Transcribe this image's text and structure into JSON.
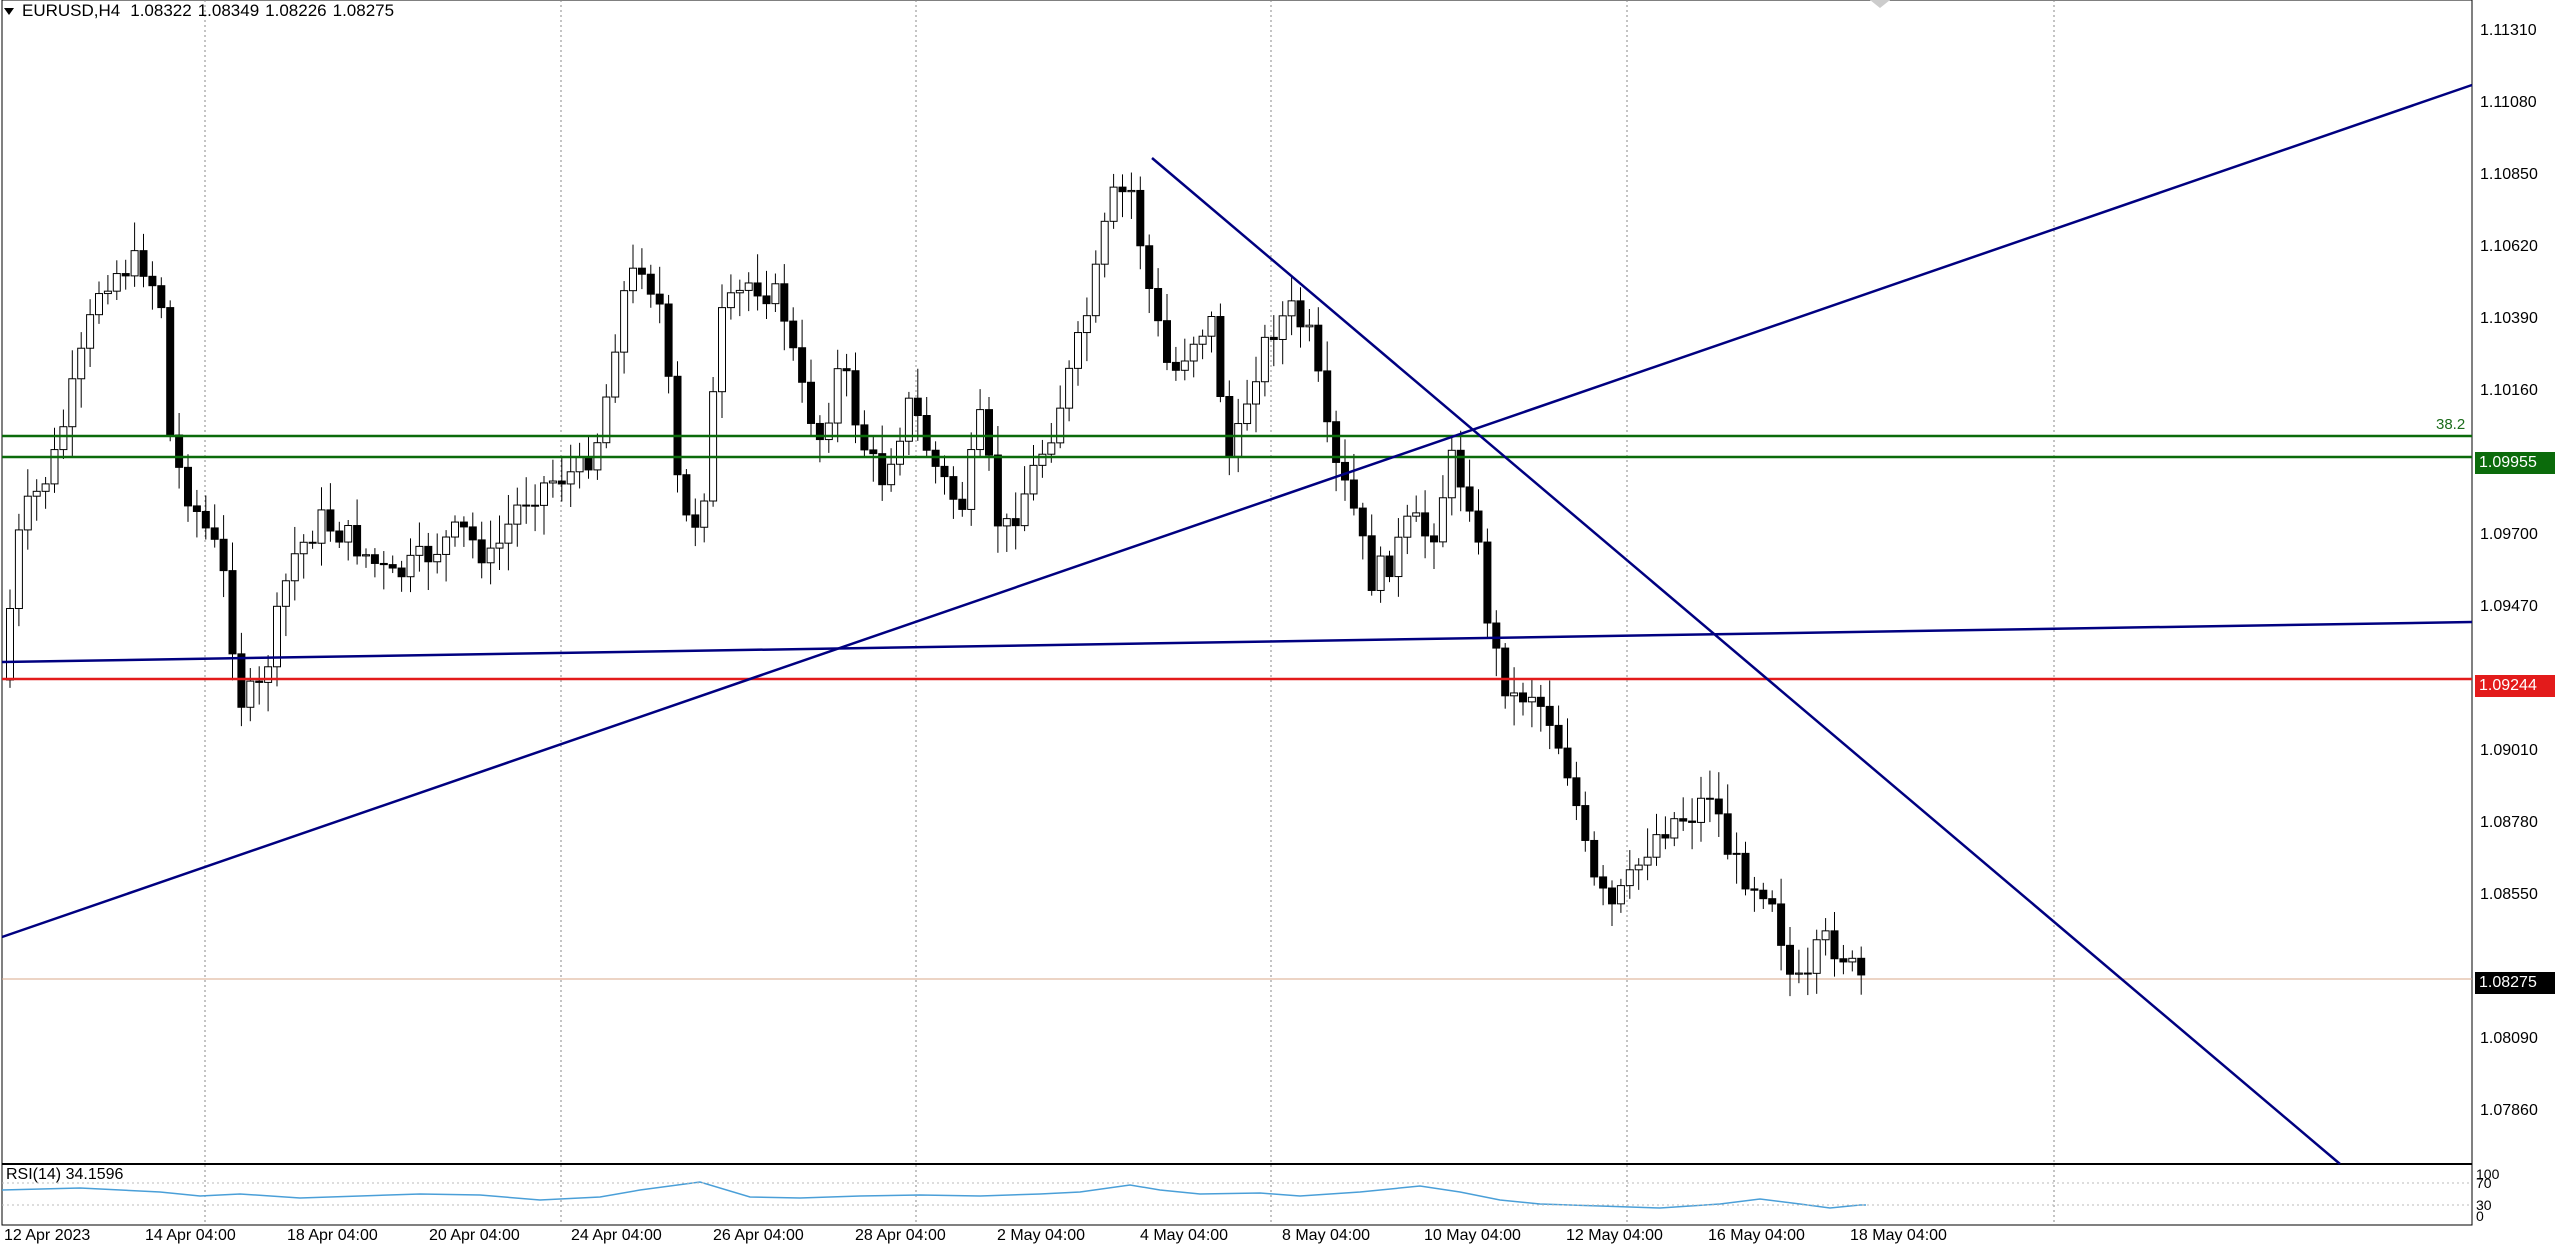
{
  "header": {
    "symbol": "EURUSD,H4",
    "open": "1.08322",
    "high": "1.08349",
    "low": "1.08226",
    "close": "1.08275"
  },
  "price_axis": {
    "labels": [
      "1.11310",
      "1.11080",
      "1.10850",
      "1.10620",
      "1.10390",
      "1.10160",
      "1.09700",
      "1.09470",
      "1.09010",
      "1.08780",
      "1.08550",
      "1.08090",
      "1.07860"
    ]
  },
  "time_axis": {
    "labels": [
      "12 Apr 2023",
      "14 Apr 04:00",
      "18 Apr 04:00",
      "20 Apr 04:00",
      "24 Apr 04:00",
      "26 Apr 04:00",
      "28 Apr 04:00",
      "2 May 04:00",
      "4 May 04:00",
      "8 May 04:00",
      "10 May 04:00",
      "12 May 04:00",
      "16 May 04:00",
      "18 May 04:00"
    ]
  },
  "levels": {
    "fib_label": "38.2",
    "green_price": "1.09955",
    "red_price": "1.09244",
    "current_price": "1.08275"
  },
  "rsi": {
    "label": "RSI(14) 34.1596",
    "axis_labels": [
      "100",
      "70",
      "30",
      "0"
    ]
  },
  "colors": {
    "bull": "#ffffff",
    "bear": "#000000",
    "trendline": "#000080",
    "green_level": "#006400",
    "red_level": "#e31b1b",
    "rsi_line": "#1e90ff"
  }
}
